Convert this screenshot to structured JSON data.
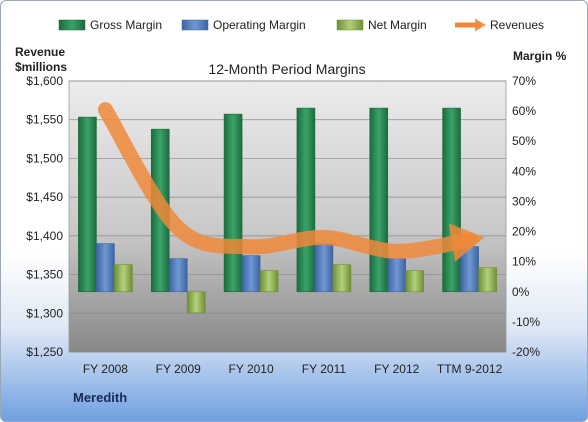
{
  "chart_data": {
    "type": "bar",
    "title": "12-Month Period Margins",
    "company": "Meredith",
    "y_left_label_line1": "Revenue",
    "y_left_label_line2": "$millions",
    "y_right_label": "Margin %",
    "categories": [
      "FY 2008",
      "FY 2009",
      "FY 2010",
      "FY 2011",
      "FY 2012",
      "TTM 9-2012"
    ],
    "y_left_ticks": [
      "$1,250",
      "$1,300",
      "$1,350",
      "$1,400",
      "$1,450",
      "$1,500",
      "$1,550",
      "$1,600"
    ],
    "y_right_ticks": [
      "-20%",
      "-10%",
      "0%",
      "10%",
      "20%",
      "30%",
      "40%",
      "50%",
      "60%",
      "70%"
    ],
    "ylim_left": [
      1250,
      1600
    ],
    "ylim_right": [
      -20,
      70
    ],
    "grid": true,
    "legend_position": "top",
    "series": [
      {
        "name": "Gross Margin",
        "axis": "right",
        "kind": "bar",
        "color": "#2e8b57",
        "values": [
          58,
          54,
          59,
          61,
          61,
          61
        ]
      },
      {
        "name": "Operating Margin",
        "axis": "right",
        "kind": "bar",
        "color": "#4f81bd",
        "values": [
          16,
          11,
          12,
          16,
          11,
          15
        ]
      },
      {
        "name": "Net Margin",
        "axis": "right",
        "kind": "bar",
        "color": "#9bbb59",
        "values": [
          9,
          -7,
          7,
          9,
          7,
          8
        ]
      },
      {
        "name": "Revenues",
        "axis": "left",
        "kind": "line",
        "color": "#f0883a",
        "values": [
          1563,
          1410,
          1386,
          1398,
          1380,
          1395
        ]
      }
    ]
  }
}
